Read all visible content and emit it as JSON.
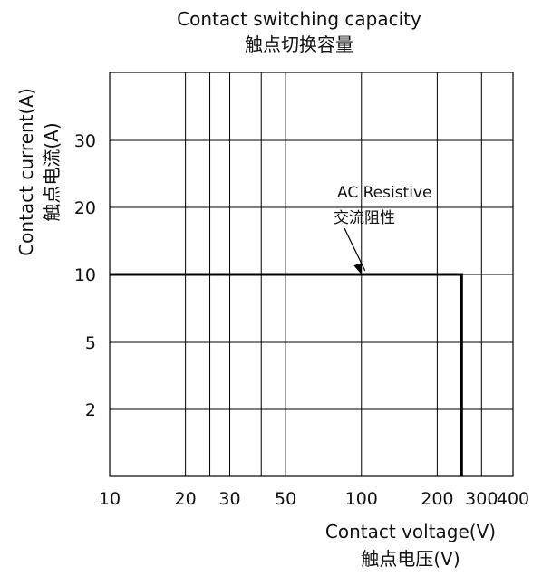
{
  "chart_data": {
    "type": "line",
    "title": "Contact switching capacity",
    "subtitle": "触点切换容量",
    "xlabel": "Contact voltage(V)",
    "xlabel_sub": "触点电压(V)",
    "ylabel": "Contact current(A)",
    "ylabel_sub": "触点电流(A)",
    "x_scale": "log",
    "y_scale": "nonlinear",
    "xlim": [
      10,
      400
    ],
    "ylim_ticks": [
      "2",
      "5",
      "10",
      "20",
      "30"
    ],
    "x_ticks": [
      {
        "label": "10",
        "value": 10
      },
      {
        "label": "20",
        "value": 20
      },
      {
        "label": "30",
        "value": 30
      },
      {
        "label": "50",
        "value": 50
      },
      {
        "label": "100",
        "value": 100
      },
      {
        "label": "200",
        "value": 200
      },
      {
        "label": "300",
        "value": 300
      },
      {
        "label": "400",
        "value": 400
      }
    ],
    "x_gridlines": [
      20,
      25,
      30,
      40,
      50,
      100,
      200,
      300
    ],
    "y_ticks": [
      {
        "label": "2",
        "value": 2
      },
      {
        "label": "5",
        "value": 5
      },
      {
        "label": "10",
        "value": 10
      },
      {
        "label": "20",
        "value": 20
      },
      {
        "label": "30",
        "value": 30
      }
    ],
    "grid": true,
    "series": [
      {
        "name": "AC Resistive",
        "name_sub": "交流阻性",
        "points": [
          {
            "x": 10,
            "y": 10
          },
          {
            "x": 250,
            "y": 10
          },
          {
            "x": 250,
            "y": 0
          }
        ],
        "color": "#000000"
      }
    ],
    "annotation": {
      "text": "AC Resistive",
      "text_sub": "交流阻性",
      "arrow_to": {
        "x": 100,
        "y": 10
      }
    }
  }
}
